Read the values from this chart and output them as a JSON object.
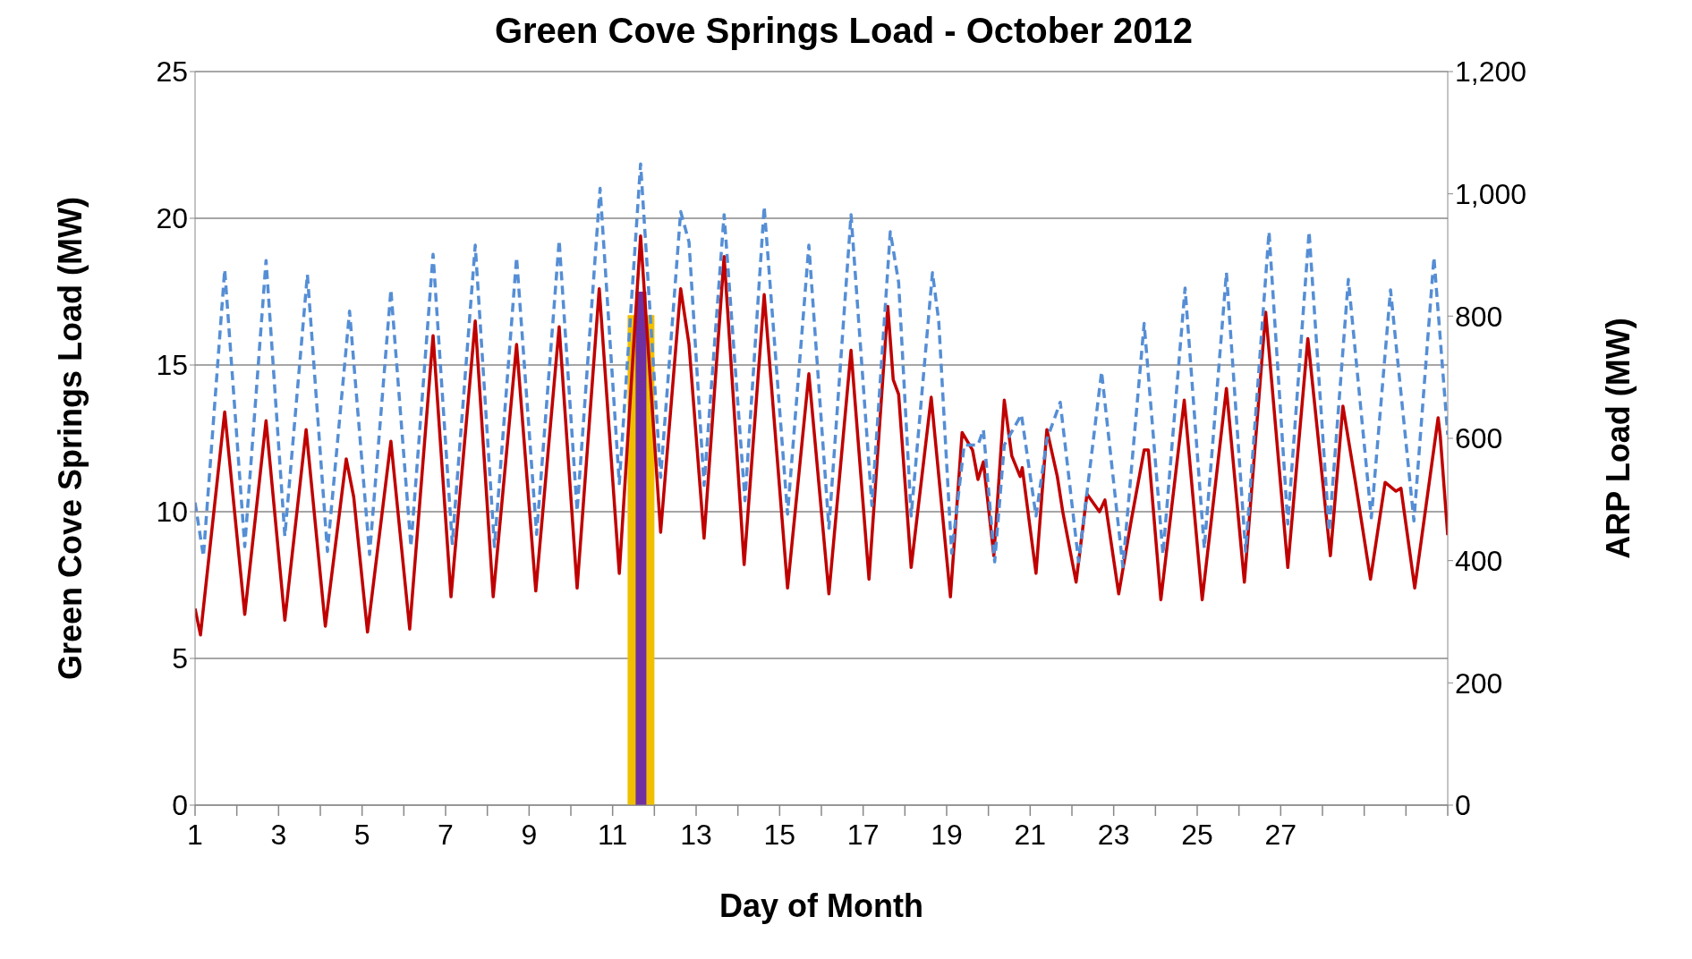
{
  "chart_data": {
    "type": "line",
    "title": "Green Cove Springs Load - October 2012",
    "xlabel": "Day of Month",
    "ylabel": "Green Cove Springs Load (MW)",
    "y2label": "ARP Load (MW)",
    "xlim": [
      1,
      31
    ],
    "xticks": [
      1,
      {
        "value": 2,
        "label": null
      },
      3,
      {
        "value": 4,
        "label": null
      },
      5,
      {
        "value": 6,
        "label": null
      },
      7,
      {
        "value": 8,
        "label": null
      },
      9,
      {
        "value": 10,
        "label": null
      },
      11,
      {
        "value": 12,
        "label": null
      },
      13,
      {
        "value": 14,
        "label": null
      },
      15,
      {
        "value": 16,
        "label": null
      },
      17,
      {
        "value": 18,
        "label": null
      },
      19,
      {
        "value": 20,
        "label": null
      },
      21,
      {
        "value": 22,
        "label": null
      },
      23,
      {
        "value": 24,
        "label": null
      },
      25,
      {
        "value": 26,
        "label": null
      },
      27,
      {
        "value": 28,
        "label": null
      },
      {
        "value": 29,
        "label": null
      },
      {
        "value": 30,
        "label": null
      },
      {
        "value": 31,
        "label": null
      }
    ],
    "ylim": [
      0,
      25
    ],
    "yticks": [
      0,
      5,
      10,
      15,
      20,
      25
    ],
    "y2lim": [
      0,
      1200
    ],
    "y2ticks": [
      0,
      200,
      400,
      600,
      800,
      {
        "value": 1000,
        "label": "1,000"
      },
      {
        "value": 1200,
        "label": "1,200"
      }
    ],
    "grid": "y",
    "marker": "none",
    "series": [
      {
        "color": "#c00000",
        "line_style": "solid",
        "x": [
          1.0,
          1.13,
          1.71,
          2.19,
          2.7,
          3.15,
          3.66,
          4.12,
          4.62,
          4.8,
          5.13,
          5.69,
          6.14,
          6.7,
          7.13,
          7.71,
          8.14,
          8.7,
          9.16,
          9.72,
          10.15,
          10.68,
          11.16,
          11.67,
          12.15,
          12.63,
          12.83,
          13.19,
          13.67,
          14.15,
          14.63,
          15.19,
          15.7,
          16.18,
          16.71,
          17.14,
          17.59,
          17.72,
          17.85,
          18.15,
          18.63,
          19.09,
          19.37,
          19.62,
          19.75,
          19.88,
          20.13,
          20.38,
          20.56,
          20.76,
          20.81,
          21.14,
          21.4,
          21.65,
          21.78,
          22.1,
          22.36,
          22.66,
          22.79,
          23.12,
          23.42,
          23.73,
          23.83,
          24.13,
          24.69,
          25.12,
          25.7,
          26.13,
          26.64,
          27.17,
          27.65,
          28.19,
          28.49,
          28.79,
          29.15,
          29.5,
          29.76,
          29.88,
          30.21,
          30.77,
          30.82,
          31.0
        ],
        "values": [
          6.7,
          5.8,
          13.4,
          6.5,
          13.1,
          6.3,
          12.8,
          6.1,
          11.8,
          10.5,
          5.9,
          12.4,
          6.0,
          16.0,
          7.1,
          16.5,
          7.1,
          15.7,
          7.3,
          16.3,
          7.4,
          17.6,
          7.9,
          19.4,
          9.3,
          17.6,
          15.7,
          9.1,
          18.7,
          8.2,
          17.4,
          7.4,
          14.7,
          7.2,
          15.5,
          7.7,
          17.0,
          14.5,
          14.0,
          8.1,
          13.9,
          7.1,
          12.7,
          12.1,
          11.1,
          11.7,
          8.5,
          13.8,
          11.9,
          11.2,
          11.5,
          7.9,
          12.8,
          11.2,
          10.0,
          7.6,
          10.6,
          10.0,
          10.4,
          7.2,
          9.7,
          12.1,
          12.1,
          7.0,
          13.8,
          7.0,
          14.2,
          7.6,
          16.8,
          8.1,
          15.9,
          8.5,
          13.6,
          11.0,
          7.7,
          11.0,
          10.7,
          10.8,
          7.4,
          13.2,
          12.6,
          9.2
        ]
      },
      {
        "axis": "y2",
        "color": "#558ed5",
        "line_style": "dashed",
        "x": [
          1.0,
          1.2,
          1.71,
          2.19,
          2.7,
          3.15,
          3.69,
          4.17,
          4.7,
          5.18,
          5.69,
          6.17,
          6.7,
          7.16,
          7.71,
          8.17,
          8.7,
          9.18,
          9.72,
          10.15,
          10.7,
          11.16,
          11.67,
          12.15,
          12.63,
          12.83,
          13.19,
          13.67,
          14.17,
          14.63,
          15.19,
          15.7,
          16.18,
          16.71,
          17.21,
          17.65,
          17.85,
          18.15,
          18.66,
          18.81,
          19.12,
          19.42,
          19.75,
          19.88,
          20.15,
          20.38,
          20.79,
          21.14,
          21.4,
          21.72,
          22.16,
          22.71,
          23.22,
          23.73,
          24.18,
          24.71,
          25.17,
          25.7,
          26.16,
          26.72,
          27.17,
          27.68,
          28.16,
          28.62,
          29.17,
          29.63,
          30.19,
          30.67,
          31.0
        ],
        "values": [
          495,
          407,
          876,
          423,
          891,
          440,
          868,
          415,
          808,
          410,
          843,
          423,
          901,
          428,
          916,
          423,
          896,
          443,
          924,
          481,
          1009,
          526,
          1049,
          536,
          971,
          921,
          523,
          966,
          498,
          979,
          476,
          916,
          453,
          966,
          490,
          938,
          855,
          473,
          871,
          792,
          412,
          589,
          589,
          614,
          398,
          589,
          639,
          473,
          598,
          659,
          398,
          709,
          390,
          788,
          410,
          846,
          420,
          871,
          415,
          938,
          460,
          938,
          448,
          860,
          470,
          843,
          465,
          896,
          606
        ]
      },
      {
        "type": "bar",
        "color": "#f0c000",
        "x": [
          11.68
        ],
        "values": [
          16.7
        ]
      },
      {
        "type": "bar",
        "color": "#7030a0",
        "x": [
          11.68
        ],
        "values": [
          17.5
        ]
      }
    ]
  }
}
